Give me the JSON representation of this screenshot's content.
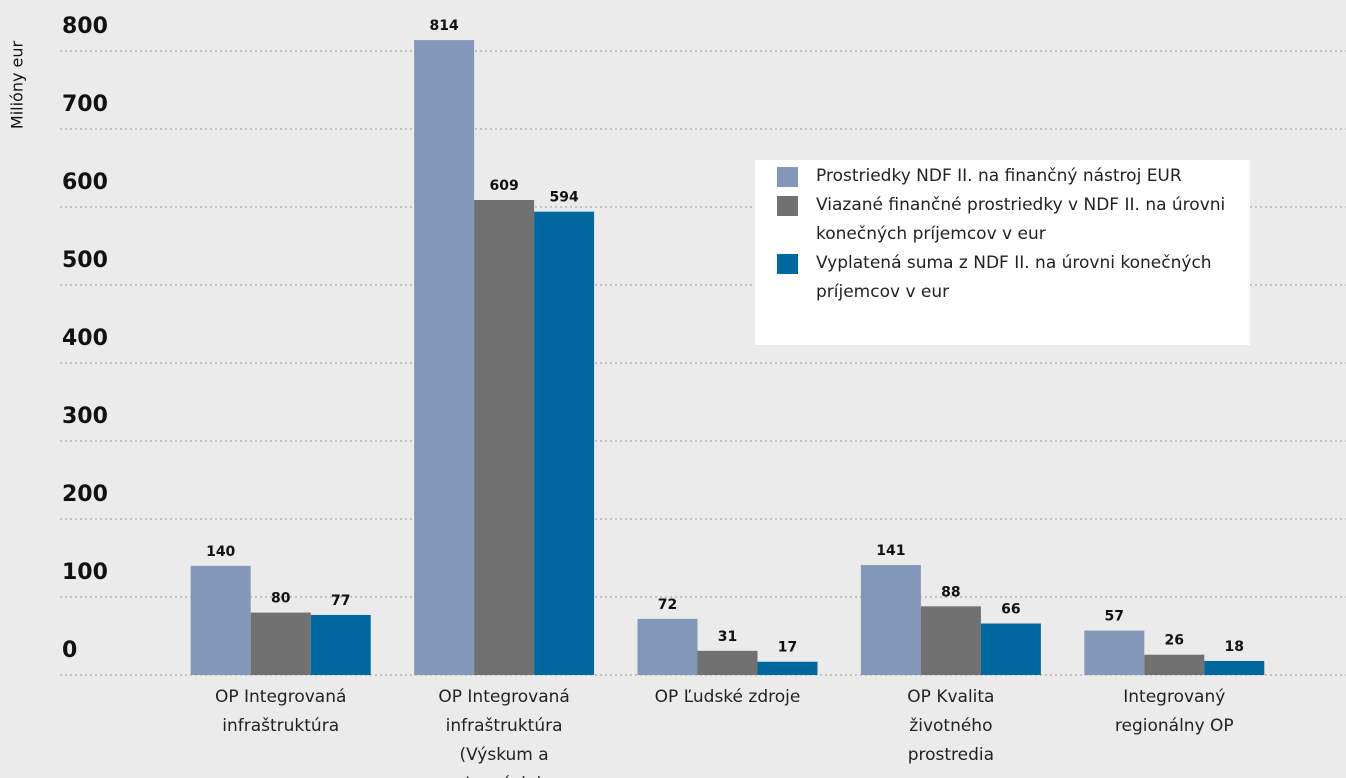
{
  "chart_data": {
    "type": "bar",
    "y_axis_label": "Milióny eur",
    "categories": [
      "OP Integrovaná infraštruktúra",
      "OP Integrovaná infraštruktúra (Výskum a Inovácie)",
      "OP Ľudské zdroje",
      "OP Kvalita životného prostredia",
      "Integrovaný regionálny OP"
    ],
    "series": [
      {
        "name": "Prostriedky NDF II. na finančný nástroj EUR",
        "color": "#8398b8",
        "values": [
          140,
          814,
          72,
          141,
          57
        ]
      },
      {
        "name": "Viazané finančné prostriedky v NDF II. na úrovni konečných príjemcov v eur",
        "color": "#717171",
        "values": [
          80,
          609,
          31,
          88,
          26
        ]
      },
      {
        "name": "Vyplatená suma z NDF II. na úrovni konečných príjemcov v eur",
        "color": "#00689e",
        "values": [
          77,
          594,
          17,
          66,
          18
        ]
      }
    ],
    "ylim": [
      0,
      800
    ],
    "yticks": [
      0,
      100,
      200,
      300,
      400,
      500,
      600,
      700,
      800
    ],
    "grid": true,
    "legend": "upper right"
  }
}
